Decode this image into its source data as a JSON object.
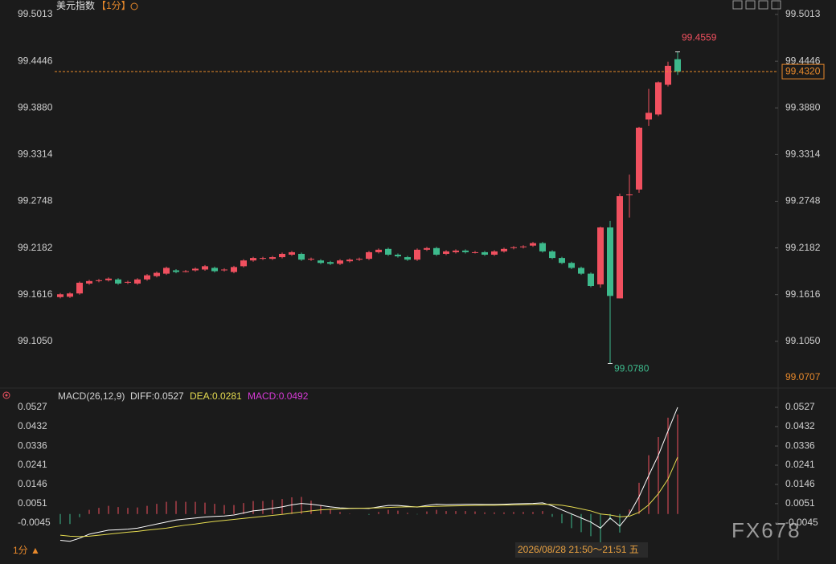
{
  "header": {
    "title": "美元指数",
    "period": "【1分】"
  },
  "chart_data": [
    {
      "type": "candlestick",
      "up_color": "#f0505f",
      "down_color": "#3dba8c",
      "open": [
        99.1586,
        99.159,
        99.163,
        99.175,
        99.178,
        99.179,
        99.18,
        99.176,
        99.175,
        99.18,
        99.184,
        99.187,
        99.191,
        99.19,
        99.191,
        99.192,
        99.194,
        99.191,
        99.189,
        99.196,
        99.203,
        99.205,
        99.205,
        99.207,
        99.21,
        99.211,
        99.204,
        99.203,
        99.201,
        99.199,
        99.202,
        99.204,
        99.205,
        99.213,
        99.217,
        99.21,
        99.207,
        99.204,
        99.216,
        99.218,
        99.211,
        99.213,
        99.215,
        99.213,
        99.213,
        99.21,
        99.214,
        99.218,
        99.219,
        99.221,
        99.224,
        99.214,
        99.206,
        99.2,
        99.194,
        99.187,
        99.174,
        99.243,
        99.157,
        99.282,
        99.289,
        99.374,
        99.38,
        99.416,
        99.447
      ],
      "high": [
        99.1635,
        99.1645,
        99.1775,
        99.1795,
        99.1805,
        99.1825,
        99.1815,
        99.1785,
        99.1815,
        99.1865,
        99.1895,
        99.1955,
        99.1925,
        99.1915,
        99.1945,
        99.1975,
        99.1955,
        99.1935,
        99.1965,
        99.2045,
        99.2075,
        99.2075,
        99.2085,
        99.2125,
        99.2145,
        99.2125,
        99.2065,
        99.2045,
        99.2025,
        99.2045,
        99.2055,
        99.2065,
        99.2145,
        99.2175,
        99.2185,
        99.2115,
        99.2085,
        99.2175,
        99.2195,
        99.2195,
        99.2155,
        99.2165,
        99.2165,
        99.2145,
        99.2145,
        99.2155,
        99.2185,
        99.2205,
        99.2215,
        99.2255,
        99.2255,
        99.2155,
        99.2075,
        99.2015,
        99.1955,
        99.1885,
        99.244,
        99.251,
        99.284,
        99.307,
        99.365,
        99.411,
        99.42,
        99.444,
        99.4559
      ],
      "low": [
        99.157,
        99.1575,
        99.1615,
        99.1735,
        99.1765,
        99.1775,
        99.1735,
        99.1745,
        99.1735,
        99.1785,
        99.1825,
        99.1855,
        99.1875,
        99.1885,
        99.1895,
        99.1905,
        99.1885,
        99.1895,
        99.1875,
        99.1945,
        99.2015,
        99.2035,
        99.2035,
        99.2055,
        99.2085,
        99.2025,
        99.2025,
        99.1985,
        99.1975,
        99.1975,
        99.2005,
        99.2025,
        99.2035,
        99.2115,
        99.2085,
        99.2065,
        99.2025,
        99.2025,
        99.2145,
        99.2085,
        99.2095,
        99.2115,
        99.2115,
        99.2115,
        99.2085,
        99.2085,
        99.2125,
        99.2165,
        99.2175,
        99.2195,
        99.2125,
        99.2045,
        99.1985,
        99.1925,
        99.1855,
        99.1705,
        99.17,
        99.078,
        99.157,
        99.255,
        99.285,
        99.366,
        99.378,
        99.414,
        99.428
      ],
      "close": [
        99.162,
        99.163,
        99.176,
        99.178,
        99.179,
        99.181,
        99.175,
        99.177,
        99.18,
        99.185,
        99.188,
        99.194,
        99.189,
        99.19,
        99.193,
        99.196,
        99.19,
        99.192,
        99.195,
        99.203,
        99.206,
        99.206,
        99.207,
        99.211,
        99.213,
        99.204,
        99.205,
        99.2,
        99.199,
        99.203,
        99.204,
        99.205,
        99.213,
        99.216,
        99.21,
        99.208,
        99.204,
        99.216,
        99.218,
        99.21,
        99.214,
        99.215,
        99.213,
        99.213,
        99.21,
        99.214,
        99.217,
        99.219,
        99.22,
        99.224,
        99.214,
        99.206,
        99.2,
        99.194,
        99.187,
        99.172,
        99.243,
        99.16,
        99.281,
        99.283,
        99.364,
        99.382,
        99.419,
        99.439,
        99.432
      ],
      "ylim": [
        99.0707,
        99.511
      ],
      "yticks": [
        99.5013,
        99.4446,
        {
          "value": 99.388,
          "label": "99.3880"
        },
        99.3314,
        99.2748,
        99.2182,
        99.1616,
        {
          "value": 99.105,
          "label": "99.1050"
        }
      ],
      "last_price": {
        "value": 99.432,
        "label": "99.4320"
      },
      "annotations": [
        {
          "value": 99.4559,
          "label": "99.4559",
          "index": 64,
          "color": "#f0505f"
        },
        {
          "value": 99.078,
          "label": "99.0780",
          "index": 57,
          "color": "#3dba8c"
        }
      ]
    },
    {
      "type": "macd",
      "title": "MACD(26,12,9)",
      "ylim": [
        -0.016,
        0.0527
      ],
      "yticks": [
        0.0527,
        0.0432,
        0.0336,
        0.0241,
        0.0146,
        0.0051,
        -0.0045
      ],
      "series": [
        {
          "name": "DIFF",
          "style": "line",
          "color": "#ffffff",
          "label_color": "#d8d8d8",
          "values": [
            -0.013,
            -0.0135,
            -0.012,
            -0.01,
            -0.009,
            -0.008,
            -0.0078,
            -0.0075,
            -0.007,
            -0.006,
            -0.005,
            -0.004,
            -0.003,
            -0.0025,
            -0.002,
            -0.0015,
            -0.0012,
            -0.001,
            -0.0005,
            0.0005,
            0.0015,
            0.002,
            0.0028,
            0.0035,
            0.0045,
            0.0052,
            0.0048,
            0.0042,
            0.0035,
            0.003,
            0.0028,
            0.0028,
            0.0027,
            0.0035,
            0.0042,
            0.0042,
            0.0038,
            0.0034,
            0.0042,
            0.0048,
            0.0046,
            0.0047,
            0.0048,
            0.0048,
            0.0047,
            0.0047,
            0.0048,
            0.005,
            0.0051,
            0.0052,
            0.0055,
            0.004,
            0.002,
            0.0,
            -0.002,
            -0.004,
            -0.007,
            -0.002,
            -0.006,
            0.0,
            0.0085,
            0.019,
            0.029,
            0.041,
            0.0527
          ]
        },
        {
          "name": "DEA",
          "style": "line",
          "color": "#e6dc50",
          "label_color": "#e6dc50",
          "values": [
            -0.0105,
            -0.011,
            -0.0112,
            -0.011,
            -0.0105,
            -0.01,
            -0.0095,
            -0.009,
            -0.0086,
            -0.008,
            -0.0075,
            -0.007,
            -0.0062,
            -0.0055,
            -0.005,
            -0.0043,
            -0.0037,
            -0.0032,
            -0.0027,
            -0.0022,
            -0.0017,
            -0.0012,
            -0.0007,
            -0.0002,
            0.0004,
            0.001,
            0.0015,
            0.002,
            0.0023,
            0.0025,
            0.0027,
            0.0028,
            0.0029,
            0.003,
            0.0032,
            0.0034,
            0.0035,
            0.0035,
            0.0036,
            0.0038,
            0.0039,
            0.004,
            0.0041,
            0.0042,
            0.0043,
            0.0043,
            0.0044,
            0.0045,
            0.0046,
            0.0047,
            0.0048,
            0.0047,
            0.0043,
            0.0035,
            0.0025,
            0.0015,
            0.0,
            -0.0005,
            -0.0014,
            -0.0011,
            0.0008,
            0.0045,
            0.01,
            0.0172,
            0.0281
          ]
        },
        {
          "name": "MACD",
          "style": "bar",
          "up_color": "#f0505f",
          "down_color": "#3dba8c",
          "label_color": "#d63ad6",
          "values": [
            -0.005,
            -0.005,
            -0.0016,
            0.002,
            0.003,
            0.004,
            0.0034,
            0.003,
            0.0032,
            0.004,
            0.005,
            0.006,
            0.0064,
            0.006,
            0.006,
            0.0056,
            0.005,
            0.0044,
            0.0044,
            0.0054,
            0.0064,
            0.0064,
            0.007,
            0.0074,
            0.0082,
            0.0084,
            0.0066,
            0.0044,
            0.0024,
            0.001,
            0.0002,
            0.0,
            -0.0004,
            0.001,
            0.002,
            0.0016,
            0.0006,
            -0.0002,
            0.0012,
            0.002,
            0.0014,
            0.0014,
            0.0014,
            0.0012,
            0.0008,
            0.0008,
            0.0008,
            0.001,
            0.001,
            0.001,
            0.0014,
            -0.0014,
            -0.0046,
            -0.007,
            -0.009,
            -0.011,
            -0.014,
            -0.003,
            -0.0092,
            0.0022,
            0.0154,
            0.029,
            0.038,
            0.0476,
            0.0492
          ]
        }
      ]
    }
  ],
  "footer": {
    "time": "2026/08/28 21:50～21:51 五",
    "period_button": "1分 ▲",
    "watermark": "FX678"
  }
}
